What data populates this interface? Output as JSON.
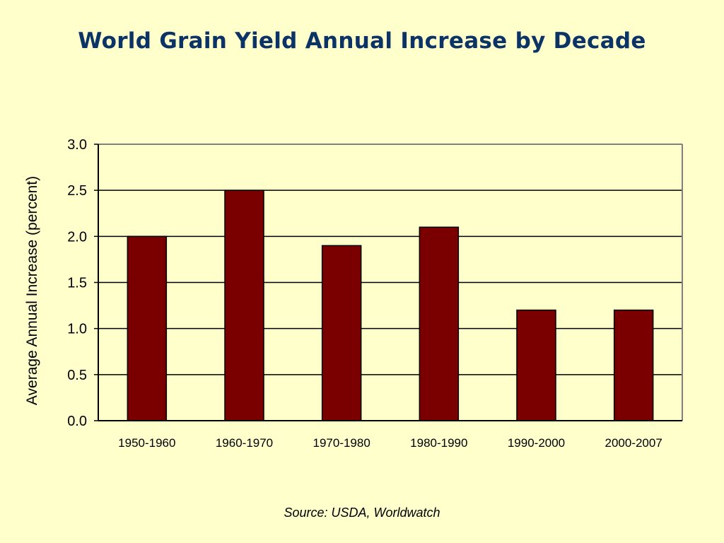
{
  "chart_data": {
    "type": "bar",
    "title": "World Grain Yield Annual Increase by Decade",
    "categories": [
      "1950-1960",
      "1960-1970",
      "1970-1980",
      "1980-1990",
      "1990-2000",
      "2000-2007"
    ],
    "values": [
      2.0,
      2.5,
      1.9,
      2.1,
      1.2,
      1.2
    ],
    "xlabel": "",
    "ylabel": "Average Annual Increase (percent)",
    "ylim": [
      0,
      3
    ],
    "yticks": [
      "0.0",
      "0.5",
      "1.0",
      "1.5",
      "2.0",
      "2.5",
      "3.0"
    ],
    "grid": true,
    "legend": "none",
    "bar_color": "#7A0000",
    "source": "Source: USDA, Worldwatch"
  },
  "colors": {
    "background": "#FFFFCC",
    "title": "#0B3366",
    "bar": "#7A0000",
    "plot_border": "#808080"
  }
}
